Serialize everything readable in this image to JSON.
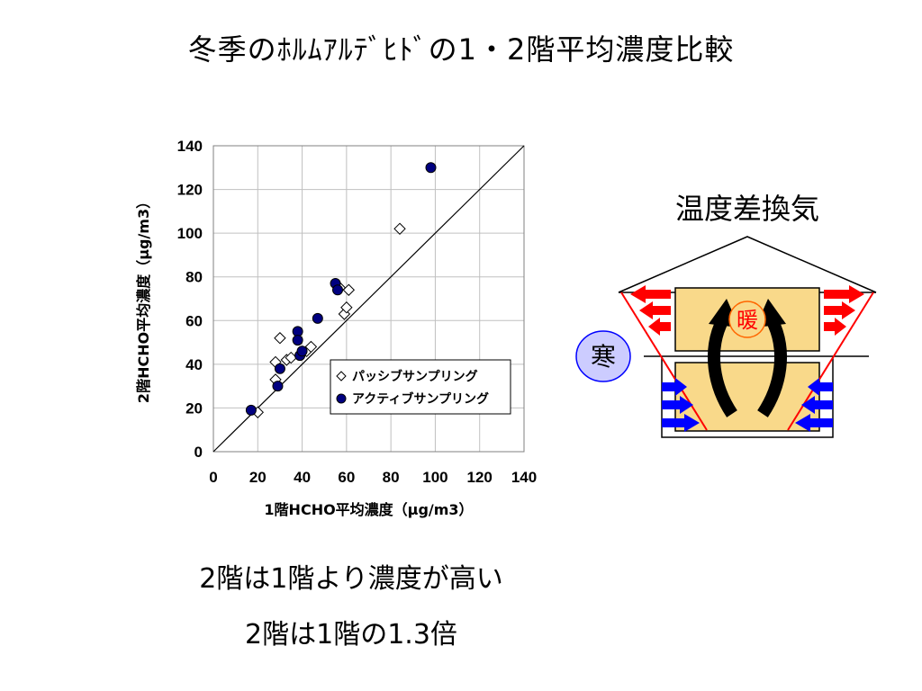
{
  "title": "冬季のﾎﾙﾑｱﾙﾃﾞﾋﾄﾞの1・2階平均濃度比較",
  "captions": [
    "2階は1階より濃度が高い",
    "2階は1階の1.3倍"
  ],
  "diagram": {
    "title": "温度差換気",
    "warm_label": "暖",
    "cold_label": "寒",
    "colors": {
      "warm": "#ff0000",
      "cold": "#0000ff",
      "fill": "#f9d98a",
      "cold_circle": "#ccccff"
    }
  },
  "chart_data": {
    "type": "scatter",
    "xlabel": "1階HCHO平均濃度（μg/m3）",
    "ylabel": "2階HCHO平均濃度（μg/m3）",
    "xlim": [
      0,
      140
    ],
    "ylim": [
      0,
      140
    ],
    "xticks": [
      0,
      20,
      40,
      60,
      80,
      100,
      120,
      140
    ],
    "yticks": [
      0,
      20,
      40,
      60,
      80,
      100,
      120,
      140
    ],
    "grid": true,
    "reference_line": "y=x",
    "legend_position": "lower-right",
    "series": [
      {
        "name": "パッシブサンプリング",
        "marker": "diamond-open",
        "color": "#000000",
        "points": [
          [
            20,
            18
          ],
          [
            28,
            33
          ],
          [
            28,
            41
          ],
          [
            30,
            52
          ],
          [
            33,
            42
          ],
          [
            35,
            43
          ],
          [
            42,
            46
          ],
          [
            44,
            48
          ],
          [
            57,
            75
          ],
          [
            59,
            63
          ],
          [
            60,
            66
          ],
          [
            61,
            74
          ],
          [
            84,
            102
          ]
        ]
      },
      {
        "name": "アクティブサンプリング",
        "marker": "circle-filled",
        "color": "#000080",
        "points": [
          [
            17,
            19
          ],
          [
            29,
            30
          ],
          [
            30,
            38
          ],
          [
            38,
            55
          ],
          [
            38,
            51
          ],
          [
            39,
            44
          ],
          [
            40,
            46
          ],
          [
            47,
            61
          ],
          [
            55,
            77
          ],
          [
            56,
            74
          ],
          [
            98,
            130
          ]
        ]
      }
    ]
  }
}
